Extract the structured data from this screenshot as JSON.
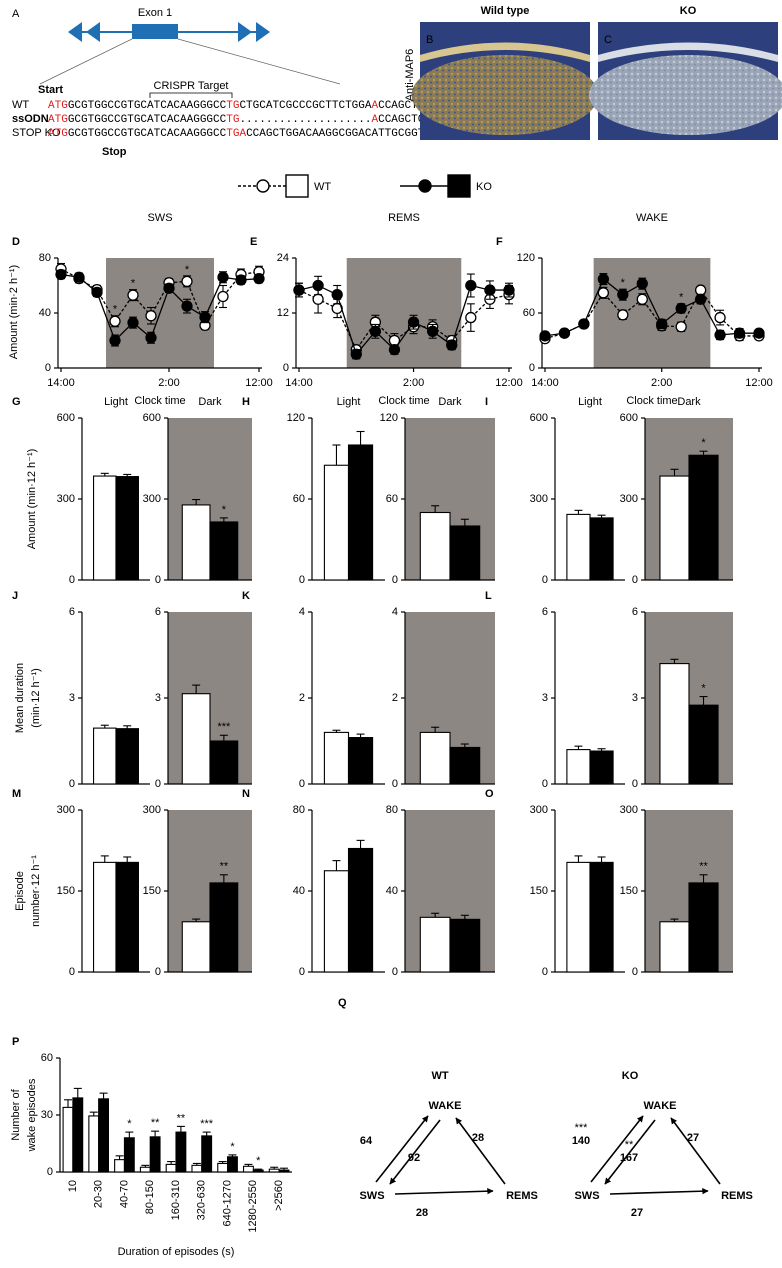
{
  "gene_diagram": {
    "panel": "A",
    "exon": "Exon 1",
    "crispr": "CRISPR Target",
    "start": "Start",
    "stop": "Stop",
    "sequences": [
      {
        "label": "WT",
        "parts": [
          {
            "text": "ATG",
            "highlight": true
          },
          {
            "text": "GCGTGGCCGTGCATCACAAGGGCC",
            "highlight": false
          },
          {
            "text": "TG",
            "highlight": true
          },
          {
            "text": "CTGCATCGCCCGCTTCTGGA",
            "highlight": false
          },
          {
            "text": "A",
            "highlight": true
          },
          {
            "text": "CCAGCTGGACAAGGCGGACATTGCGGT. . .",
            "highlight": false
          }
        ]
      },
      {
        "label": "ssODN",
        "parts": [
          {
            "text": "ATG",
            "highlight": true
          },
          {
            "text": "GCGTGGCCGTGCATCACAAGGGCC",
            "highlight": false
          },
          {
            "text": "TG",
            "highlight": true
          },
          {
            "text": "....................",
            "highlight": false
          },
          {
            "text": "A",
            "highlight": true
          },
          {
            "text": "CCAGCTGGACAAGGCGGACATTGCGGT. . .",
            "highlight": false
          }
        ]
      },
      {
        "label": "STOP KO",
        "parts": [
          {
            "text": "ATG",
            "highlight": true
          },
          {
            "text": "GCGTGGCCGTGCATCACAAGGGCC",
            "highlight": false
          },
          {
            "text": "TGA",
            "highlight": true
          },
          {
            "text": "CCAGCTGGACAAGGCGGACATTGCGGT. . .",
            "highlight": false
          }
        ]
      }
    ]
  },
  "image_label": "Anti-MAP6",
  "images": [
    {
      "panel": "B",
      "title": "Wild type"
    },
    {
      "panel": "C",
      "title": "KO"
    }
  ],
  "chart_data": [
    {
      "type": "line",
      "panel": "D",
      "title": "SWS",
      "y_label": "Amount (min·2 h⁻¹)",
      "x_label": "Clock time",
      "categories": [
        "14:00",
        null,
        null,
        null,
        null,
        null,
        "2:00",
        null,
        null,
        null,
        null,
        "12:00"
      ],
      "ylim": [
        0,
        80
      ],
      "yticks": [
        0,
        40,
        80
      ],
      "series": [
        {
          "name": "WT",
          "color": "#000000",
          "fill": "#ffffff",
          "dashed": true,
          "values": [
            72,
            65,
            57,
            34,
            53,
            38,
            62,
            63,
            31,
            52,
            68,
            70
          ],
          "errors": [
            4,
            3,
            3,
            4,
            4,
            6,
            3,
            4,
            3,
            8,
            4,
            4
          ]
        },
        {
          "name": "KO",
          "color": "#000000",
          "fill": "#000000",
          "dashed": false,
          "values": [
            68,
            66,
            55,
            20,
            33,
            22,
            58,
            45,
            37,
            66,
            64,
            65
          ],
          "errors": [
            3,
            3,
            3,
            4,
            4,
            4,
            3,
            5,
            4,
            4,
            3,
            3
          ]
        }
      ],
      "significance": [
        null,
        null,
        null,
        "*",
        "*",
        null,
        null,
        "*",
        null,
        null,
        null,
        null
      ]
    },
    {
      "type": "line",
      "panel": "E",
      "title": "REMS",
      "x_label": "Clock time",
      "categories": [
        "14:00",
        null,
        null,
        null,
        null,
        null,
        "2:00",
        null,
        null,
        null,
        null,
        "12:00"
      ],
      "ylim": [
        0,
        24
      ],
      "yticks": [
        0,
        12,
        24
      ],
      "series": [
        {
          "color": "#000000",
          "fill": "#ffffff",
          "dashed": true,
          "values": [
            17,
            15,
            13,
            4,
            10,
            6,
            9,
            9,
            6,
            11,
            15,
            16
          ],
          "errors": [
            1.5,
            3,
            2,
            1,
            1.5,
            1.5,
            1.5,
            1.5,
            1,
            3,
            2,
            2
          ]
        },
        {
          "color": "#000000",
          "fill": "#000000",
          "dashed": false,
          "values": [
            17,
            18,
            16,
            3,
            8,
            4,
            10,
            8,
            5,
            18,
            17,
            17
          ],
          "errors": [
            1.5,
            2,
            2,
            1,
            1.5,
            1,
            1.5,
            1.5,
            1,
            2.5,
            2,
            1.5
          ]
        }
      ]
    },
    {
      "type": "line",
      "panel": "F",
      "title": "WAKE",
      "x_label": "Clock time",
      "categories": [
        "14:00",
        null,
        null,
        null,
        null,
        null,
        "2:00",
        null,
        null,
        null,
        null,
        "12:00"
      ],
      "ylim": [
        0,
        120
      ],
      "yticks": [
        0,
        60,
        120
      ],
      "series": [
        {
          "color": "#000000",
          "fill": "#ffffff",
          "dashed": true,
          "values": [
            32,
            38,
            48,
            82,
            58,
            75,
            46,
            45,
            85,
            55,
            35,
            35
          ],
          "errors": [
            4,
            4,
            4,
            6,
            5,
            6,
            5,
            5,
            4,
            8,
            5,
            4
          ]
        },
        {
          "color": "#000000",
          "fill": "#000000",
          "dashed": false,
          "values": [
            35,
            38,
            48,
            97,
            80,
            92,
            48,
            65,
            75,
            36,
            38,
            38
          ],
          "errors": [
            4,
            4,
            4,
            6,
            6,
            6,
            5,
            5,
            5,
            5,
            5,
            4
          ]
        }
      ],
      "significance": [
        null,
        null,
        null,
        null,
        "*",
        null,
        null,
        "*",
        null,
        null,
        null,
        null
      ]
    },
    {
      "type": "bar",
      "panel": "G",
      "y_label": "Amount (min·12 h⁻¹)",
      "title": "Light",
      "shaded": false,
      "ylim": [
        0,
        600
      ],
      "yticks": [
        0,
        300,
        600
      ],
      "colors": [
        "#ffffff",
        "#000000"
      ],
      "values": [
        385,
        383
      ],
      "errors": [
        10,
        8
      ]
    },
    {
      "type": "bar",
      "title": "Dark",
      "shaded": true,
      "ylim": [
        0,
        600
      ],
      "yticks": [
        0,
        300,
        600
      ],
      "colors": [
        "#ffffff",
        "#000000"
      ],
      "values": [
        278,
        215
      ],
      "errors": [
        20,
        15
      ],
      "significance": [
        null,
        "*"
      ]
    },
    {
      "type": "bar",
      "panel": "H",
      "title": "Light",
      "shaded": false,
      "ylim": [
        0,
        120
      ],
      "yticks": [
        0,
        60,
        120
      ],
      "colors": [
        "#ffffff",
        "#000000"
      ],
      "values": [
        85,
        100
      ],
      "errors": [
        15,
        10
      ]
    },
    {
      "type": "bar",
      "title": "Dark",
      "shaded": true,
      "ylim": [
        0,
        120
      ],
      "yticks": [
        0,
        60,
        120
      ],
      "colors": [
        "#ffffff",
        "#000000"
      ],
      "values": [
        50,
        40
      ],
      "errors": [
        5,
        5
      ]
    },
    {
      "type": "bar",
      "panel": "I",
      "title": "Light",
      "shaded": false,
      "ylim": [
        0,
        600
      ],
      "yticks": [
        0,
        300,
        600
      ],
      "colors": [
        "#ffffff",
        "#000000"
      ],
      "values": [
        243,
        230
      ],
      "errors": [
        15,
        10
      ]
    },
    {
      "type": "bar",
      "title": "Dark",
      "shaded": true,
      "ylim": [
        0,
        600
      ],
      "yticks": [
        0,
        300,
        600
      ],
      "colors": [
        "#ffffff",
        "#000000"
      ],
      "values": [
        385,
        462
      ],
      "errors": [
        25,
        15
      ],
      "significance": [
        null,
        "*"
      ]
    },
    {
      "type": "bar",
      "panel": "J",
      "y_label": [
        "Mean duration",
        "(min·12 h⁻¹)"
      ],
      "shaded": false,
      "ylim": [
        0,
        6
      ],
      "yticks": [
        0,
        3,
        6
      ],
      "colors": [
        "#ffffff",
        "#000000"
      ],
      "values": [
        1.95,
        1.93
      ],
      "errors": [
        0.1,
        0.1
      ]
    },
    {
      "type": "bar",
      "shaded": true,
      "ylim": [
        0,
        6
      ],
      "yticks": [
        0,
        3,
        6
      ],
      "colors": [
        "#ffffff",
        "#000000"
      ],
      "values": [
        3.15,
        1.5
      ],
      "errors": [
        0.3,
        0.2
      ],
      "significance": [
        null,
        "***"
      ]
    },
    {
      "type": "bar",
      "panel": "K",
      "shaded": false,
      "ylim": [
        0,
        4
      ],
      "yticks": [
        0,
        2,
        4
      ],
      "colors": [
        "#ffffff",
        "#000000"
      ],
      "values": [
        1.2,
        1.08
      ],
      "errors": [
        0.05,
        0.08
      ]
    },
    {
      "type": "bar",
      "shaded": true,
      "ylim": [
        0,
        4
      ],
      "yticks": [
        0,
        2,
        4
      ],
      "colors": [
        "#ffffff",
        "#000000"
      ],
      "values": [
        1.2,
        0.85
      ],
      "errors": [
        0.12,
        0.08
      ]
    },
    {
      "type": "bar",
      "panel": "L",
      "shaded": false,
      "ylim": [
        0,
        6
      ],
      "yticks": [
        0,
        3,
        6
      ],
      "colors": [
        "#ffffff",
        "#000000"
      ],
      "values": [
        1.2,
        1.15
      ],
      "errors": [
        0.12,
        0.08
      ]
    },
    {
      "type": "bar",
      "shaded": true,
      "ylim": [
        0,
        6
      ],
      "yticks": [
        0,
        3,
        6
      ],
      "colors": [
        "#ffffff",
        "#000000"
      ],
      "values": [
        4.2,
        2.75
      ],
      "errors": [
        0.15,
        0.3
      ],
      "significance": [
        null,
        "*"
      ]
    },
    {
      "type": "bar",
      "panel": "M",
      "y_label": [
        "Episode",
        "number·12 h⁻¹"
      ],
      "shaded": false,
      "ylim": [
        0,
        300
      ],
      "yticks": [
        0,
        150,
        300
      ],
      "colors": [
        "#ffffff",
        "#000000"
      ],
      "values": [
        203,
        203
      ],
      "errors": [
        12,
        10
      ]
    },
    {
      "type": "bar",
      "shaded": true,
      "ylim": [
        0,
        300
      ],
      "yticks": [
        0,
        150,
        300
      ],
      "colors": [
        "#ffffff",
        "#000000"
      ],
      "values": [
        93,
        165
      ],
      "errors": [
        5,
        15
      ],
      "significance": [
        null,
        "**"
      ]
    },
    {
      "type": "bar",
      "panel": "N",
      "shaded": false,
      "ylim": [
        0,
        80
      ],
      "yticks": [
        0,
        40,
        80
      ],
      "colors": [
        "#ffffff",
        "#000000"
      ],
      "values": [
        50,
        61
      ],
      "errors": [
        5,
        4
      ]
    },
    {
      "type": "bar",
      "shaded": true,
      "ylim": [
        0,
        80
      ],
      "yticks": [
        0,
        40,
        80
      ],
      "colors": [
        "#ffffff",
        "#000000"
      ],
      "values": [
        27,
        26
      ],
      "errors": [
        2,
        2
      ]
    },
    {
      "type": "bar",
      "panel": "O",
      "shaded": false,
      "ylim": [
        0,
        300
      ],
      "yticks": [
        0,
        150,
        300
      ],
      "colors": [
        "#ffffff",
        "#000000"
      ],
      "values": [
        203,
        203
      ],
      "errors": [
        12,
        10
      ]
    },
    {
      "type": "bar",
      "shaded": true,
      "ylim": [
        0,
        300
      ],
      "yticks": [
        0,
        150,
        300
      ],
      "colors": [
        "#ffffff",
        "#000000"
      ],
      "values": [
        93,
        165
      ],
      "errors": [
        5,
        15
      ],
      "significance": [
        null,
        "**"
      ]
    },
    {
      "type": "bar",
      "panel": "P",
      "y_label": [
        "Number of",
        "wake episodes"
      ],
      "x_label": "Duration of episodes (s)",
      "shaded": false,
      "categories": [
        "10",
        "20-30",
        "40-70",
        "80-150",
        "160-310",
        "320-630",
        "640-1270",
        "1280-2550",
        ">2560"
      ],
      "ylim": [
        0,
        60
      ],
      "yticks": [
        0,
        30,
        60
      ],
      "series": [
        {
          "color": "#ffffff",
          "values": [
            34,
            29.5,
            6.5,
            2.5,
            4,
            3.5,
            4.5,
            3,
            1.5
          ],
          "errors": [
            4,
            2,
            2,
            1,
            1.5,
            1,
            1,
            1,
            1
          ]
        },
        {
          "color": "#000000",
          "values": [
            39,
            38.5,
            18,
            18.5,
            21,
            19,
            8,
            1,
            1
          ],
          "errors": [
            5,
            3,
            3,
            3,
            3,
            2,
            1,
            0.5,
            1
          ],
          "significance": [
            null,
            null,
            "*",
            "**",
            "**",
            "***",
            "*",
            "*",
            null
          ]
        }
      ]
    }
  ],
  "transition_panel": "Q",
  "transitions": [
    {
      "title": "WT",
      "nodes": [
        "WAKE",
        "SWS",
        "REMS"
      ],
      "edges": [
        {
          "value": 64
        },
        {
          "value": 92
        },
        {
          "value": 28
        },
        {
          "value": 28
        }
      ]
    },
    {
      "title": "KO",
      "nodes": [
        "WAKE",
        "SWS",
        "REMS"
      ],
      "edges": [
        {
          "value": 140,
          "significance": "***"
        },
        {
          "value": 167,
          "significance": "**"
        },
        {
          "value": 27
        },
        {
          "value": 27
        }
      ]
    }
  ]
}
